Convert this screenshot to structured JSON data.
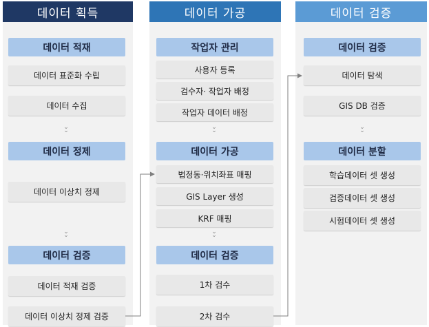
{
  "columns": [
    {
      "header": "데이터 획득",
      "header_color": "#1f3864",
      "sections": [
        {
          "title": "데이터 적재",
          "items": [
            "데이터 표준화 수립",
            "데이터 수집"
          ]
        },
        {
          "title": "데이터 정제",
          "items": [
            "데이터 이상치 정제"
          ]
        },
        {
          "title": "데이터 검증",
          "items": [
            "데이터 적재 검증",
            "데이터 이상치 정제 검증"
          ]
        }
      ]
    },
    {
      "header": "데이터 가공",
      "header_color": "#2e75b6",
      "sections": [
        {
          "title": "작업자 관리",
          "items": [
            "사용자 등록",
            "검수자· 작업자 배정",
            "작업자 데이터 배정"
          ]
        },
        {
          "title": "데이터 가공",
          "items": [
            "법정동·위치좌표 매핑",
            "GIS Layer 생성",
            "KRF 매핑"
          ]
        },
        {
          "title": "데이터 검증",
          "items": [
            "1차 검수",
            "2차 검수"
          ]
        }
      ]
    },
    {
      "header": "데이터 검증",
      "header_color": "#5b9bd5",
      "sections": [
        {
          "title": "데이터 검증",
          "items": [
            "데이터 탐색",
            "GIS DB 검증"
          ]
        },
        {
          "title": "데이터 분할",
          "items": [
            "학습데이터 셋 생성",
            "검증데이터 셋 생성",
            "시험데이터 셋 생성"
          ]
        }
      ]
    }
  ],
  "colors": {
    "section_fill": "#a9c7ea",
    "item_fill": "#e8e8e8",
    "panel_fill": "#f2f2f2",
    "connector": "#7f7f7f"
  }
}
